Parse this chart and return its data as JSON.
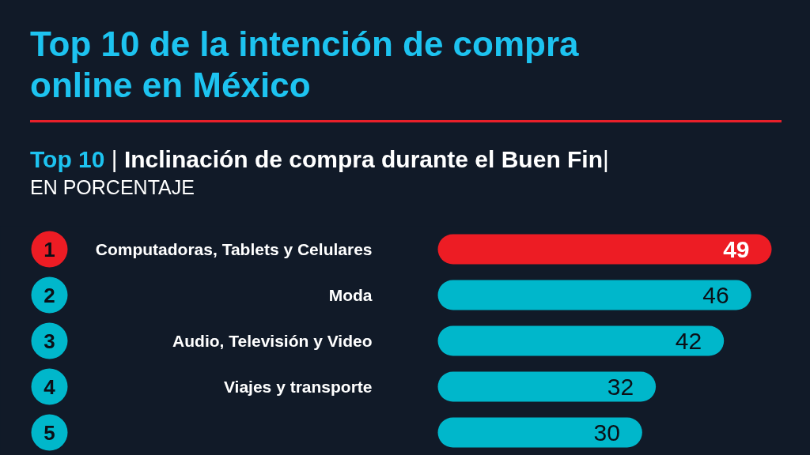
{
  "chart_data": {
    "type": "bar",
    "orientation": "horizontal",
    "title": "Top 10 de la intención de compra online en México",
    "subtitle": "Top 10 | Inclinación de compra durante el Buen Fin|",
    "xlabel": "EN PORCENTAJE",
    "categories": [
      "Computadoras, Tablets y Celulares",
      "Moda",
      "Audio, Televisión y Video",
      "Viajes y transporte",
      null
    ],
    "values": [
      49,
      46,
      42,
      32,
      30
    ],
    "colors": [
      "#ed1c24",
      "#00b7cb",
      "#00b7cb",
      "#00b7cb",
      "#00b7cb"
    ],
    "data_labels": true,
    "annotations": [
      "1",
      "2",
      "3",
      "4",
      "5"
    ]
  }
}
